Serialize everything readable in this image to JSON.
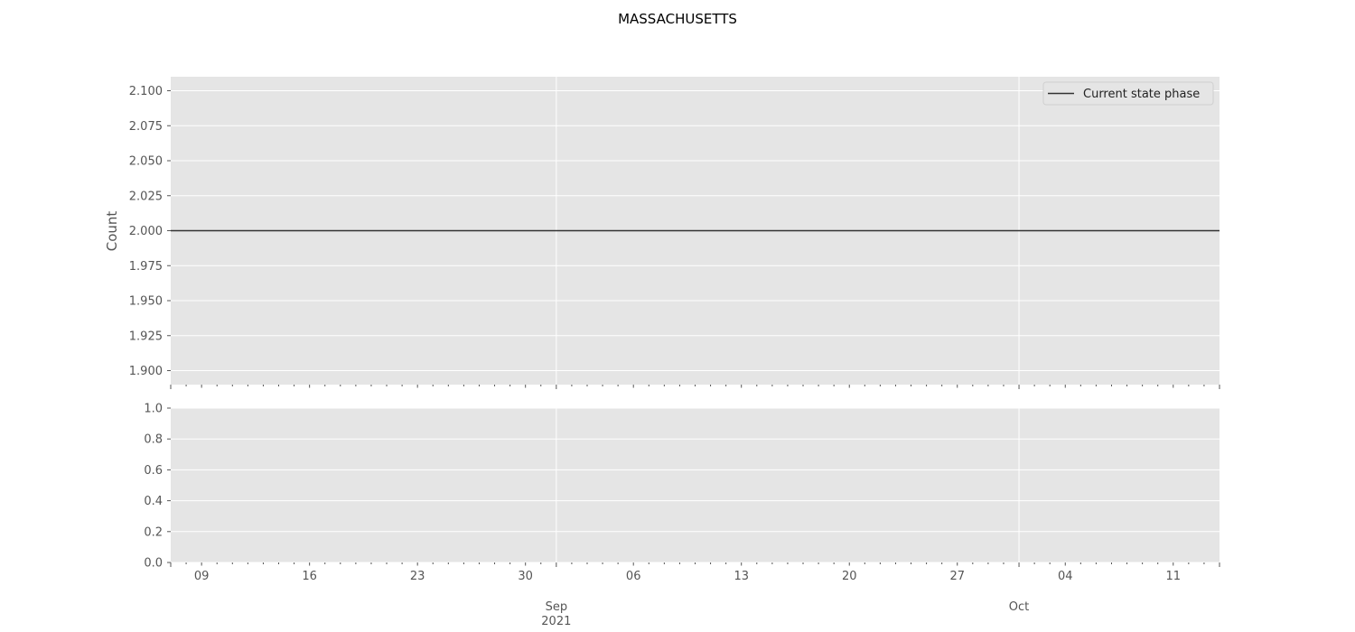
{
  "chart_data": {
    "type": "line",
    "title": "MASSACHUSETTS",
    "colors": {
      "plot_bg": "#e5e5e5",
      "grid": "#ffffff",
      "line": "#333333",
      "tick_text": "#555555"
    },
    "x_range": [
      "2021-08-07",
      "2021-10-14"
    ],
    "x_ticks_minor": [
      {
        "date": "2021-08-09",
        "label": "09"
      },
      {
        "date": "2021-08-16",
        "label": "16"
      },
      {
        "date": "2021-08-23",
        "label": "23"
      },
      {
        "date": "2021-08-30",
        "label": "30"
      },
      {
        "date": "2021-09-06",
        "label": "06"
      },
      {
        "date": "2021-09-13",
        "label": "13"
      },
      {
        "date": "2021-09-20",
        "label": "20"
      },
      {
        "date": "2021-09-27",
        "label": "27"
      },
      {
        "date": "2021-10-04",
        "label": "04"
      },
      {
        "date": "2021-10-11",
        "label": "11"
      }
    ],
    "x_ticks_major": [
      {
        "date": "2021-09-01",
        "label": "Sep",
        "sublabel": "2021"
      },
      {
        "date": "2021-10-01",
        "label": "Oct",
        "sublabel": ""
      }
    ],
    "grid": true,
    "legend_position": "top-right",
    "top_panel": {
      "ylabel": "Count",
      "ylim": [
        1.89,
        2.11
      ],
      "y_ticks": [
        {
          "value": 1.9,
          "label": "1.900"
        },
        {
          "value": 1.925,
          "label": "1.925"
        },
        {
          "value": 1.95,
          "label": "1.950"
        },
        {
          "value": 1.975,
          "label": "1.975"
        },
        {
          "value": 2.0,
          "label": "2.000"
        },
        {
          "value": 2.025,
          "label": "2.025"
        },
        {
          "value": 2.05,
          "label": "2.050"
        },
        {
          "value": 2.075,
          "label": "2.075"
        },
        {
          "value": 2.1,
          "label": "2.100"
        }
      ],
      "series": [
        {
          "name": "Current state phase",
          "x": [
            "2021-08-07",
            "2021-10-14"
          ],
          "values": [
            2.0,
            2.0
          ]
        }
      ]
    },
    "bottom_panel": {
      "ylabel": "",
      "ylim": [
        0.0,
        1.0
      ],
      "y_ticks": [
        {
          "value": 0.0,
          "label": "0.0"
        },
        {
          "value": 0.2,
          "label": "0.2"
        },
        {
          "value": 0.4,
          "label": "0.4"
        },
        {
          "value": 0.6,
          "label": "0.6"
        },
        {
          "value": 0.8,
          "label": "0.8"
        },
        {
          "value": 1.0,
          "label": "1.0"
        }
      ],
      "series": []
    }
  }
}
